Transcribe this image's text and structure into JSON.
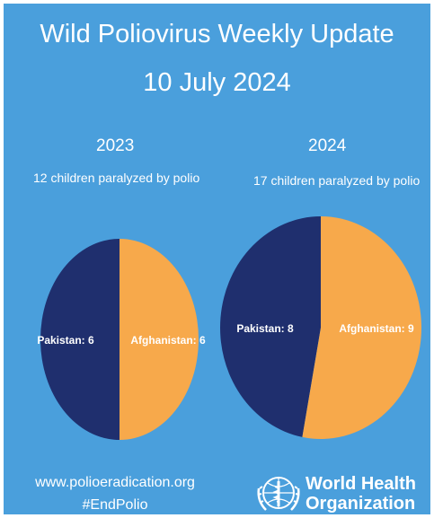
{
  "header": {
    "title": "Wild Poliovirus Weekly Update",
    "date": "10 July 2024"
  },
  "chart_data": [
    {
      "type": "pie",
      "year": "2023",
      "subtitle": "12 children paralyzed by polio",
      "slices": [
        {
          "label": "Pakistan: 6",
          "value": 6,
          "color": "#1f2f6e"
        },
        {
          "label": "Afghanistan: 6",
          "value": 6,
          "color": "#f7a94b"
        }
      ]
    },
    {
      "type": "pie",
      "year": "2024",
      "subtitle": "17 children paralyzed by polio",
      "slices": [
        {
          "label": "Pakistan: 8",
          "value": 8,
          "color": "#1f2f6e"
        },
        {
          "label": "Afghanistan: 9",
          "value": 9,
          "color": "#f7a94b"
        }
      ]
    }
  ],
  "footer": {
    "url": "www.polioeradication.org",
    "hashtag": "#EndPolio",
    "org_line1": "World Health",
    "org_line2": "Organization",
    "logo_icon": "who-emblem-icon"
  }
}
